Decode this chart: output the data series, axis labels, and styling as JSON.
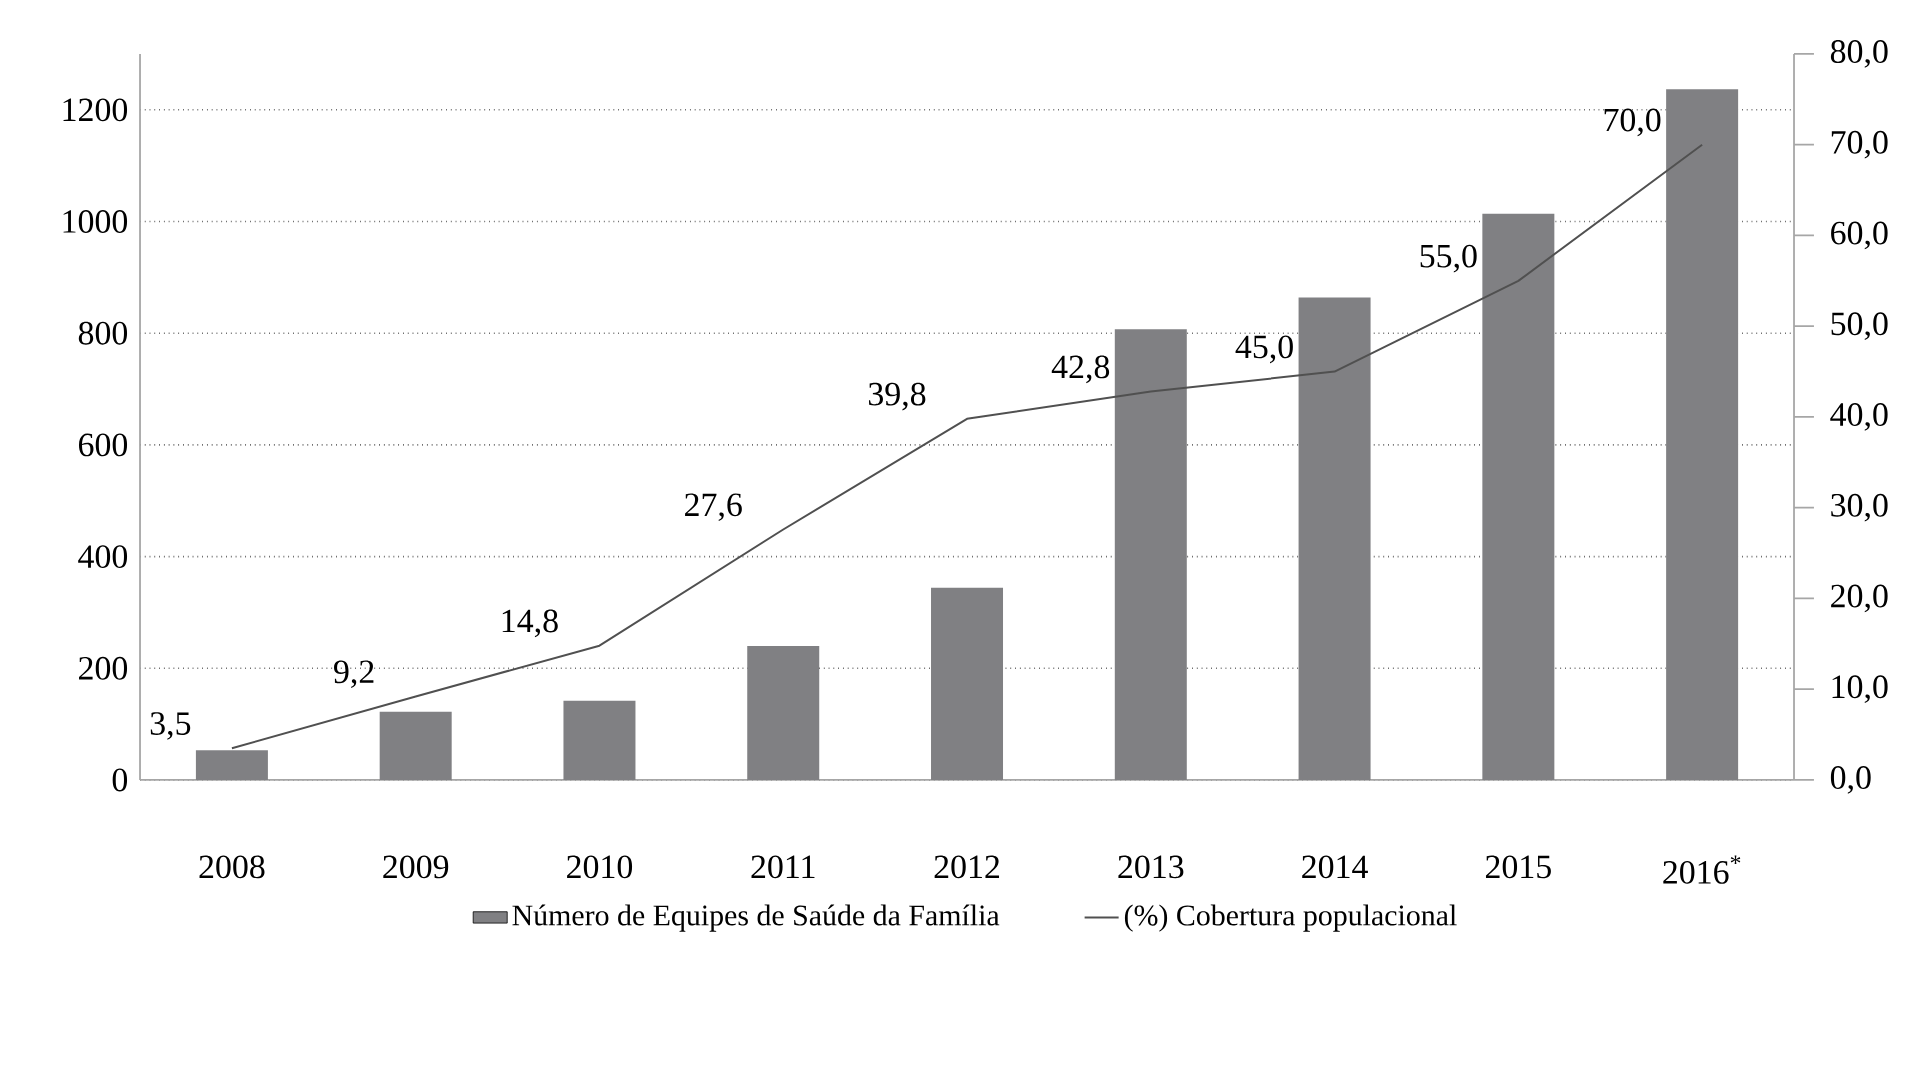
{
  "chart_data": {
    "type": "bar",
    "categories": [
      "2008",
      "2009",
      "2010",
      "2011",
      "2012",
      "2013",
      "2014",
      "2015",
      "2016$^{*}$"
    ],
    "series": [
      {
        "name": "Número de Equipes de Saúde da Família",
        "color": "#808083",
        "values": [
          53,
          122,
          142,
          240,
          344,
          807,
          864,
          1014,
          1237
        ]
      },
      {
        "name": "(%) Cobertura populacional",
        "type": "line",
        "axis": "y2",
        "color": "#505050",
        "values": [
          3.5,
          9.2,
          14.8,
          27.6,
          39.8,
          42.8,
          45.0,
          55.0,
          70.0
        ],
        "value_labels": [
          "3,5",
          "9,2",
          "14,8",
          "27,6",
          "39,8",
          "42,8",
          "45,0",
          "55,0",
          "70,0"
        ]
      }
    ],
    "ylim": [
      0,
      1300
    ],
    "yticks": [
      0,
      200,
      400,
      600,
      800,
      1000,
      1200
    ],
    "y2lim": [
      0,
      80
    ],
    "y2ticks": [
      {
        "value": 0,
        "label": "0,0"
      },
      {
        "value": 10,
        "label": "10,0"
      },
      {
        "value": 20,
        "label": "20,0"
      },
      {
        "value": 30,
        "label": "30,0"
      },
      {
        "value": 40,
        "label": "40,0"
      },
      {
        "value": 50,
        "label": "50,0"
      },
      {
        "value": 60,
        "label": "60,0"
      },
      {
        "value": 70,
        "label": "70,0"
      },
      {
        "value": 80,
        "label": "80,0"
      }
    ],
    "grid": "y",
    "legend": "bottom",
    "marker": "none",
    "line_style": "solid"
  }
}
